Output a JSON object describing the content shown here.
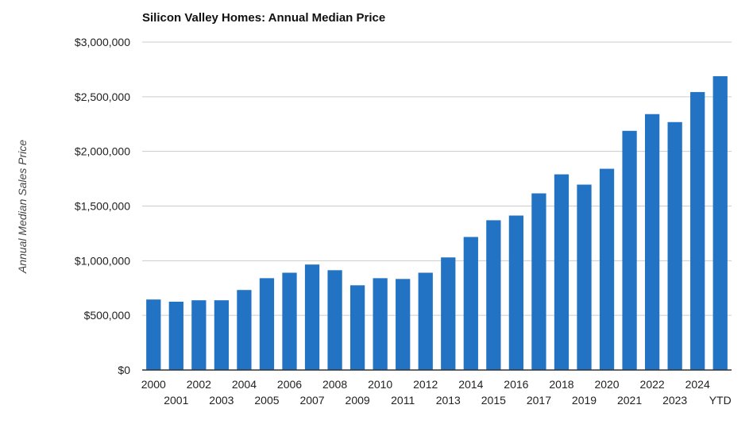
{
  "chart_data": {
    "type": "bar",
    "title": "Silicon Valley Homes: Annual Median Price",
    "xlabel": "",
    "ylabel": "Annual Median Sales Price",
    "ylim": [
      0,
      3000000
    ],
    "yticks": [
      0,
      500000,
      1000000,
      1500000,
      2000000,
      2500000,
      3000000
    ],
    "ytick_labels": [
      "$0",
      "$500,000",
      "$1,000,000",
      "$1,500,000",
      "$2,000,000",
      "$2,500,000",
      "$3,000,000"
    ],
    "grid": true,
    "legend": "none",
    "bar_color": "#2373C4",
    "categories": [
      "2000",
      "2001",
      "2002",
      "2003",
      "2004",
      "2005",
      "2006",
      "2007",
      "2008",
      "2009",
      "2010",
      "2011",
      "2012",
      "2013",
      "2014",
      "2015",
      "2016",
      "2017",
      "2018",
      "2019",
      "2020",
      "2021",
      "2022",
      "2023",
      "2024",
      "YTD"
    ],
    "values": [
      645000,
      625000,
      638000,
      638000,
      732000,
      840000,
      890000,
      965000,
      913000,
      775000,
      840000,
      833000,
      890000,
      1030000,
      1217000,
      1370000,
      1413000,
      1616000,
      1790000,
      1696000,
      1841000,
      2188000,
      2341000,
      2268000,
      2543000,
      2688000
    ]
  }
}
